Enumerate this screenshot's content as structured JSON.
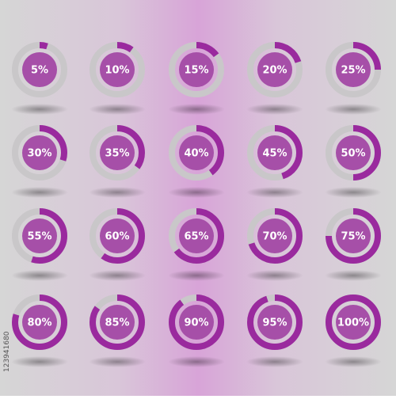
{
  "chart_data": {
    "type": "donut",
    "values": [
      5,
      10,
      15,
      20,
      25,
      30,
      35,
      40,
      45,
      50,
      55,
      60,
      65,
      70,
      75,
      80,
      85,
      90,
      95,
      100
    ],
    "value_labels": [
      "5%",
      "10%",
      "15%",
      "20%",
      "25%",
      "30%",
      "35%",
      "40%",
      "45%",
      "50%",
      "55%",
      "60%",
      "65%",
      "70%",
      "75%",
      "80%",
      "85%",
      "90%",
      "95%",
      "100%"
    ],
    "max": 100,
    "color": "#9a2a9e",
    "track_color": "#c9c7c9",
    "center_color": "#a64fa8",
    "columns": 5
  },
  "side_label": "123941680"
}
